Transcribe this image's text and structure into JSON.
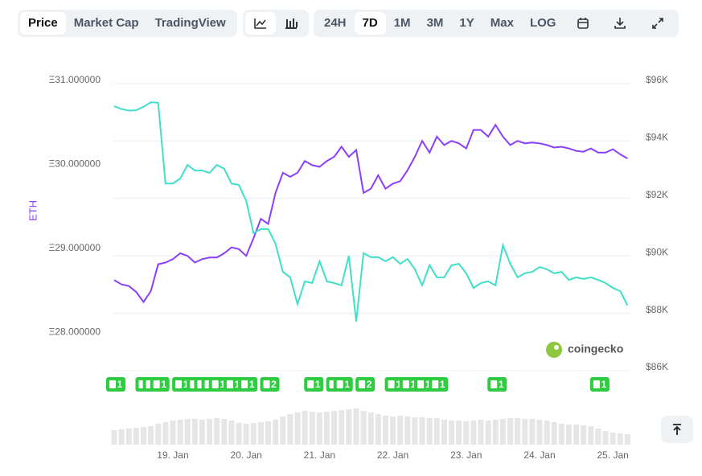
{
  "toolbar": {
    "views": [
      "Price",
      "Market Cap",
      "TradingView"
    ],
    "active_view": 0,
    "ranges": [
      "24H",
      "7D",
      "1M",
      "3M",
      "1Y",
      "Max",
      "LOG"
    ],
    "active_range": 1
  },
  "chart_data": {
    "type": "line",
    "y_label": "ETH",
    "categories": [
      null,
      null,
      null,
      null,
      null,
      null,
      null,
      null,
      "19. Jan",
      null,
      null,
      null,
      null,
      null,
      null,
      null,
      null,
      null,
      "20. Jan",
      null,
      null,
      null,
      null,
      null,
      null,
      null,
      null,
      null,
      "21. Jan",
      null,
      null,
      null,
      null,
      null,
      null,
      null,
      null,
      null,
      "22. Jan",
      null,
      null,
      null,
      null,
      null,
      null,
      null,
      null,
      null,
      "23. Jan",
      null,
      null,
      null,
      null,
      null,
      null,
      null,
      null,
      null,
      "24. Jan",
      null,
      null,
      null,
      null,
      null,
      null,
      null,
      null,
      null,
      "25. Jan",
      null,
      null
    ],
    "series": [
      {
        "color": "#8a3ffc",
        "axis": "y",
        "values": [
          28.62,
          28.57,
          28.55,
          28.48,
          28.36,
          28.49,
          28.81,
          28.83,
          28.87,
          28.94,
          28.91,
          28.83,
          28.87,
          28.89,
          28.89,
          28.94,
          29.01,
          28.99,
          28.91,
          29.12,
          29.35,
          29.29,
          29.66,
          29.9,
          29.85,
          29.9,
          30.04,
          29.99,
          29.97,
          30.04,
          30.09,
          30.21,
          30.09,
          30.17,
          29.66,
          29.71,
          29.87,
          29.71,
          29.77,
          29.8,
          29.93,
          30.09,
          30.28,
          30.14,
          30.33,
          30.23,
          30.28,
          30.25,
          30.19,
          30.41,
          30.41,
          30.33,
          30.47,
          30.33,
          30.23,
          30.28,
          30.25,
          30.26,
          30.25,
          30.23,
          30.2,
          30.21,
          30.19,
          30.16,
          30.15,
          30.19,
          30.14,
          30.14,
          30.18,
          30.12,
          30.07
        ]
      },
      {
        "color": "#3fdfc8",
        "axis": "y2",
        "values": [
          95100,
          95000,
          94950,
          94960,
          95080,
          95240,
          95220,
          92410,
          92410,
          92580,
          93060,
          92860,
          92860,
          92780,
          93060,
          92920,
          92410,
          92360,
          91800,
          90680,
          90820,
          90820,
          90310,
          89330,
          89140,
          88210,
          89000,
          88940,
          89700,
          89000,
          88940,
          88860,
          89890,
          87600,
          89980,
          89840,
          89840,
          89700,
          89840,
          89610,
          89780,
          89420,
          88860,
          89560,
          89140,
          89140,
          89560,
          89610,
          89280,
          88770,
          88940,
          89000,
          88860,
          90260,
          89610,
          89140,
          89280,
          89330,
          89500,
          89420,
          89280,
          89330,
          89050,
          89140,
          89080,
          89140,
          89050,
          88940,
          88770,
          88660,
          88160
        ]
      }
    ],
    "ylim": [
      27.58,
      31
    ],
    "yticks": [
      {
        "value": 31,
        "label": "Ξ31.000000"
      },
      {
        "value": 30,
        "label": "Ξ30.000000"
      },
      {
        "value": 29,
        "label": "Ξ29.000000"
      },
      {
        "value": 28,
        "label": "Ξ28.000000"
      }
    ],
    "y2lim": [
      86000,
      96000
    ],
    "y2ticks": [
      {
        "value": 96000,
        "label": "$96K"
      },
      {
        "value": 94000,
        "label": "$94K"
      },
      {
        "value": 92000,
        "label": "$92K"
      },
      {
        "value": 90000,
        "label": "$90K"
      },
      {
        "value": 88000,
        "label": "$88K"
      },
      {
        "value": 86000,
        "label": "$86K"
      }
    ],
    "grid": true,
    "news": [
      1,
      null,
      null,
      null,
      1,
      1,
      1,
      null,
      null,
      1,
      null,
      1,
      1,
      1,
      1,
      null,
      1,
      null,
      1,
      null,
      null,
      2,
      null,
      null,
      null,
      null,
      null,
      1,
      null,
      null,
      1,
      1,
      null,
      null,
      2,
      null,
      null,
      null,
      1,
      null,
      1,
      null,
      1,
      null,
      1,
      null,
      null,
      null,
      null,
      null,
      null,
      null,
      1,
      null,
      null,
      null,
      null,
      null,
      null,
      null,
      null,
      null,
      null,
      null,
      null,
      null,
      1,
      null,
      null,
      null,
      null
    ],
    "volume": [
      18,
      19,
      20,
      21,
      22,
      23,
      26,
      28,
      30,
      31,
      32,
      32,
      31,
      32,
      33,
      32,
      30,
      27,
      26,
      27,
      28,
      29,
      31,
      35,
      38,
      40,
      42,
      41,
      40,
      41,
      42,
      43,
      44,
      45,
      42,
      40,
      38,
      36,
      35,
      36,
      35,
      34,
      34,
      33,
      33,
      31,
      30,
      30,
      29,
      30,
      31,
      30,
      31,
      32,
      33,
      33,
      32,
      32,
      31,
      30,
      28,
      26,
      25,
      25,
      24,
      23,
      20,
      17,
      15,
      14,
      13
    ],
    "watermark": "coingecko"
  }
}
